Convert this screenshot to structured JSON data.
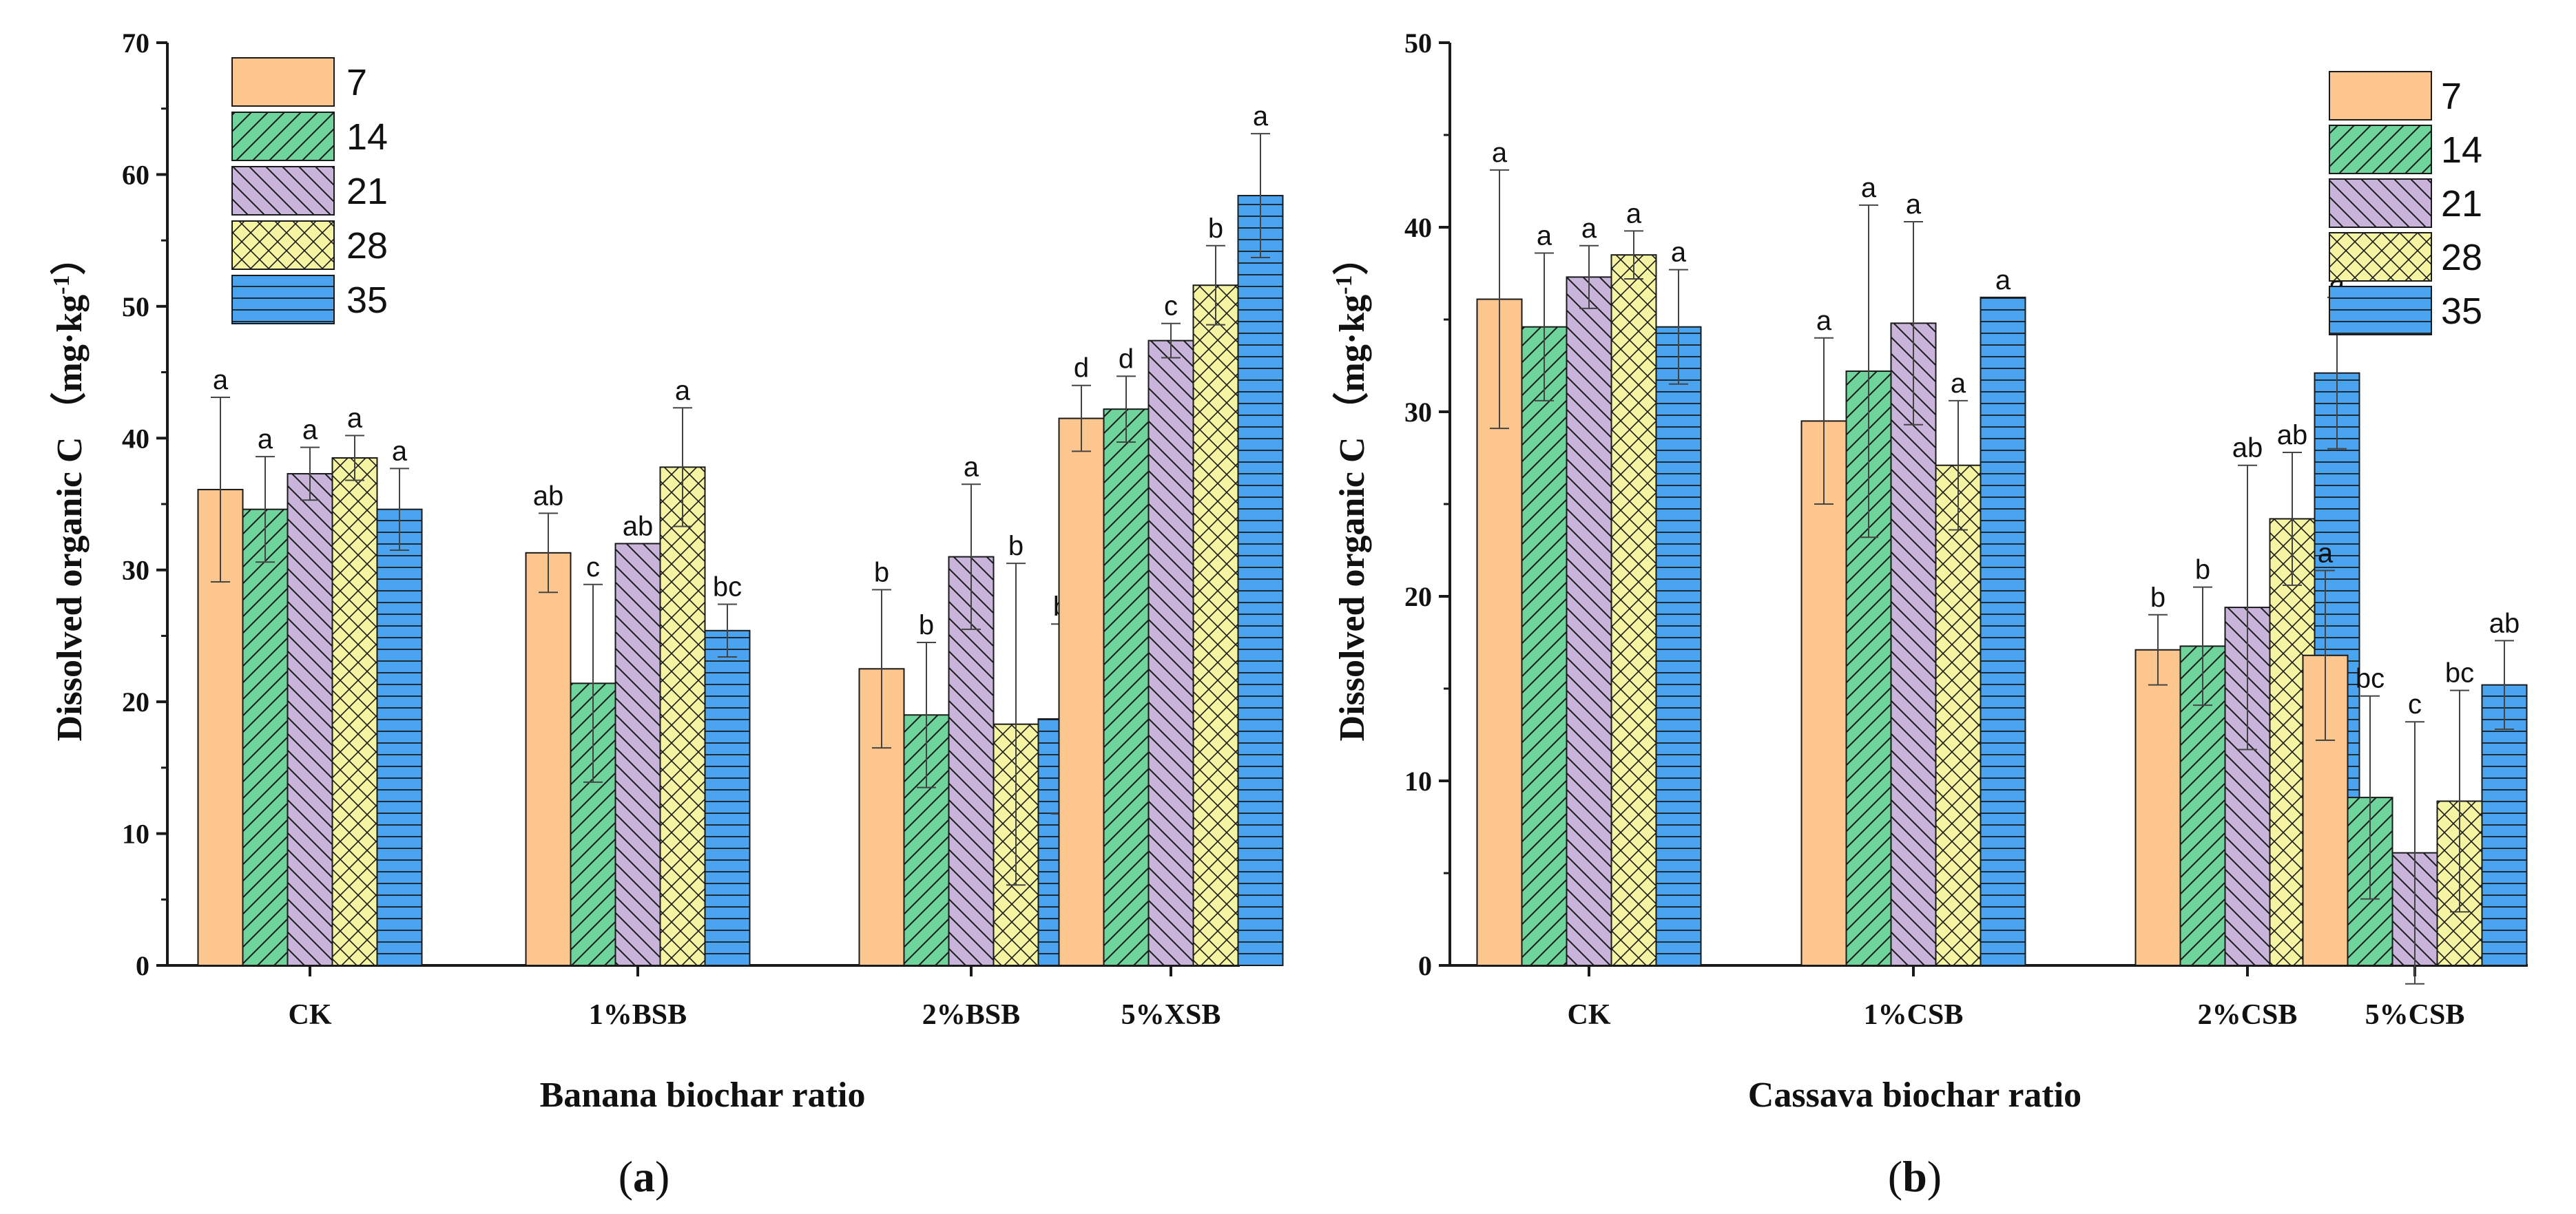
{
  "colors": {
    "s7": "#fcc68e",
    "s14": "#6fd49b",
    "s21": "#c9b4dc",
    "s28": "#f5f4a2",
    "s35": "#4ba4f0",
    "stroke": "#1a1a1a"
  },
  "chart_data": [
    {
      "type": "bar",
      "panel_label": "a",
      "xlabel": "Banana biochar ratio",
      "ylabel_main": "Dissolved organic C",
      "ylabel_unit_prefix": "（mg·kg",
      "ylabel_unit_sup": "-1",
      "ylabel_unit_suffix": "）",
      "ylim": [
        0,
        70
      ],
      "yticks": [
        0,
        10,
        20,
        30,
        40,
        50,
        60,
        70
      ],
      "categories": [
        "CK",
        "1%BSB",
        "2%BSB",
        "5%XSB"
      ],
      "legend_position": "top-left",
      "series": [
        {
          "name": "7",
          "values": [
            36.1,
            31.3,
            22.5,
            41.5
          ],
          "errors": [
            7.0,
            3.0,
            6.0,
            2.5
          ],
          "letters": [
            "a",
            "ab",
            "b",
            "d"
          ]
        },
        {
          "name": "14",
          "values": [
            34.6,
            21.4,
            19.0,
            42.2
          ],
          "errors": [
            4.0,
            7.5,
            5.5,
            2.5
          ],
          "letters": [
            "a",
            "c",
            "b",
            "d"
          ]
        },
        {
          "name": "21",
          "values": [
            37.3,
            32.0,
            31.0,
            47.4
          ],
          "errors": [
            2.0,
            0.0,
            5.5,
            1.3
          ],
          "letters": [
            "a",
            "ab",
            "a",
            "c"
          ]
        },
        {
          "name": "28",
          "values": [
            38.5,
            37.8,
            18.3,
            51.6
          ],
          "errors": [
            1.7,
            4.5,
            12.2,
            3.0
          ],
          "letters": [
            "a",
            "a",
            "b",
            "b"
          ]
        },
        {
          "name": "35",
          "values": [
            34.6,
            25.4,
            18.7,
            58.4
          ],
          "errors": [
            3.1,
            2.0,
            7.2,
            4.7
          ],
          "letters": [
            "a",
            "bc",
            "b",
            "a"
          ]
        }
      ]
    },
    {
      "type": "bar",
      "panel_label": "b",
      "xlabel": "Cassava biochar ratio",
      "ylabel_main": "Dissolved organic C",
      "ylabel_unit_prefix": "（mg·kg",
      "ylabel_unit_sup": "-1",
      "ylabel_unit_suffix": "）",
      "ylim": [
        0,
        50
      ],
      "yticks": [
        0,
        10,
        20,
        30,
        40,
        50
      ],
      "categories": [
        "CK",
        "1%CSB",
        "2%CSB",
        "5%CSB"
      ],
      "legend_position": "top-right",
      "series": [
        {
          "name": "7",
          "values": [
            36.1,
            29.5,
            17.1,
            16.8
          ],
          "errors": [
            7.0,
            4.5,
            1.9,
            4.6
          ],
          "letters": [
            "a",
            "a",
            "b",
            "a"
          ]
        },
        {
          "name": "14",
          "values": [
            34.6,
            32.2,
            17.3,
            9.1
          ],
          "errors": [
            4.0,
            9.0,
            3.2,
            5.5
          ],
          "letters": [
            "a",
            "a",
            "b",
            "bc"
          ]
        },
        {
          "name": "21",
          "values": [
            37.3,
            34.8,
            19.4,
            6.1
          ],
          "errors": [
            1.7,
            5.5,
            7.7,
            7.1
          ],
          "letters": [
            "a",
            "a",
            "ab",
            "c"
          ]
        },
        {
          "name": "28",
          "values": [
            38.5,
            27.1,
            24.2,
            8.9
          ],
          "errors": [
            1.3,
            3.5,
            3.6,
            6.0
          ],
          "letters": [
            "a",
            "a",
            "ab",
            "bc"
          ]
        },
        {
          "name": "35",
          "values": [
            34.6,
            36.2,
            32.1,
            15.2
          ],
          "errors": [
            3.1,
            0.0,
            4.1,
            2.4
          ],
          "letters": [
            "a",
            "a",
            "a",
            "ab"
          ]
        }
      ]
    }
  ]
}
